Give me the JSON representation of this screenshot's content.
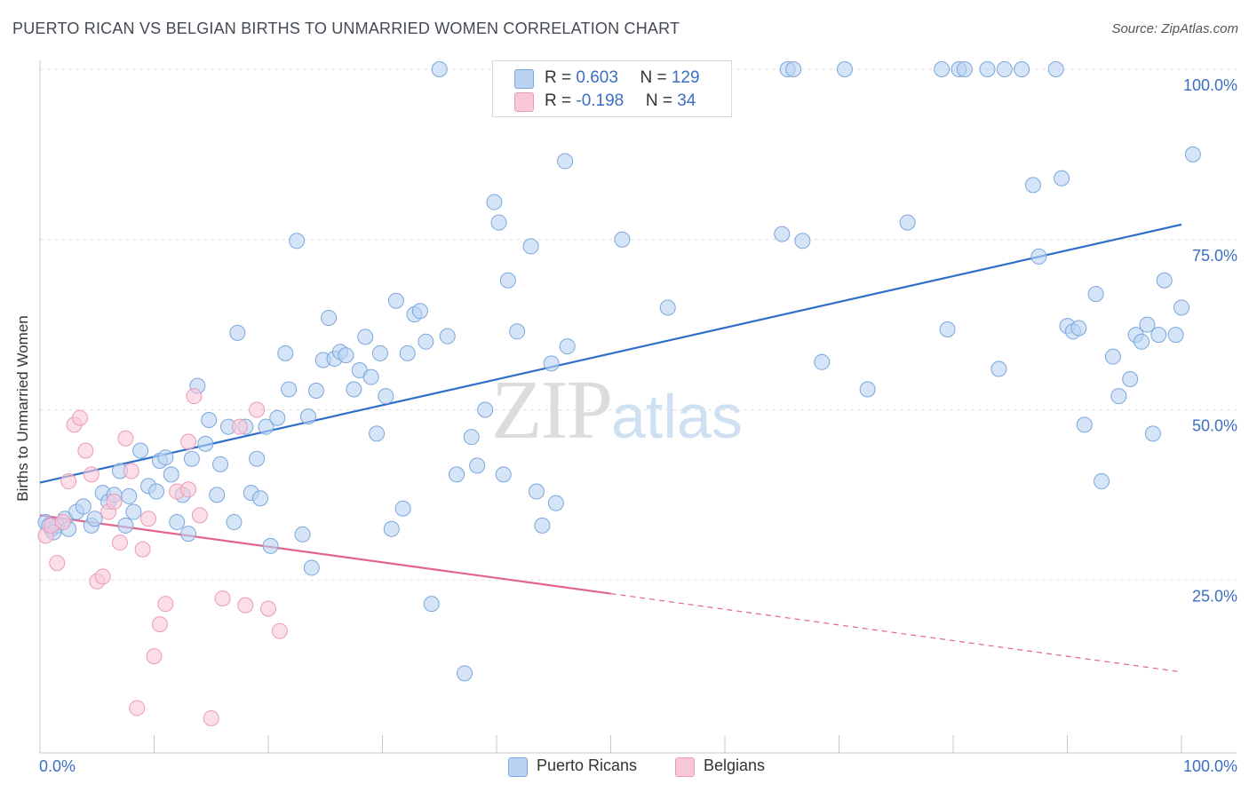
{
  "title": "PUERTO RICAN VS BELGIAN BIRTHS TO UNMARRIED WOMEN CORRELATION CHART",
  "source": "Source: ZipAtlas.com",
  "watermark": {
    "zip": "ZIP",
    "atlas": "atlas"
  },
  "legend": {
    "rows": [
      {
        "r_label": "R = ",
        "r_value": "0.603",
        "n_label": "N = ",
        "n_value": "129",
        "color": "#b9d3f1"
      },
      {
        "r_label": "R = ",
        "r_value": "-0.198",
        "n_label": "N = ",
        "n_value": "34",
        "color": "#f9c8d8"
      }
    ]
  },
  "bottom_legend": [
    {
      "label": "Puerto Ricans",
      "color": "#b9d3f1"
    },
    {
      "label": "Belgians",
      "color": "#f9c8d8"
    }
  ],
  "chart_data": {
    "type": "scatter",
    "title": "PUERTO RICAN VS BELGIAN BIRTHS TO UNMARRIED WOMEN CORRELATION CHART",
    "xlabel": "",
    "ylabel": "Births to Unmarried Women",
    "xlim": [
      0,
      100
    ],
    "ylim": [
      0,
      105
    ],
    "x_tick_labels": [
      "0.0%",
      "100.0%"
    ],
    "y_ticks": [
      25,
      50,
      75,
      100
    ],
    "y_tick_labels": [
      "25.0%",
      "50.0%",
      "75.0%",
      "100.0%"
    ],
    "grid": true,
    "grid_style": "dashed horizontal",
    "accent_blue": "#3a6fc2",
    "series": [
      {
        "name": "Puerto Ricans",
        "color": "#b9d3f1",
        "stroke": "#7ba6dc",
        "trend_color": "#2f6fcc",
        "trend": {
          "x0": 0,
          "y0": 39.3,
          "x1": 100,
          "y1": 77.2
        },
        "points": [
          [
            0.5,
            33.5
          ],
          [
            1.0,
            32.5
          ],
          [
            1.5,
            33.0
          ],
          [
            2.2,
            34.0
          ],
          [
            0.8,
            33.0
          ],
          [
            1.2,
            32.0
          ],
          [
            2.5,
            32.5
          ],
          [
            3.2,
            35.0
          ],
          [
            3.8,
            35.8
          ],
          [
            4.5,
            33.0
          ],
          [
            4.8,
            34.0
          ],
          [
            5.5,
            37.8
          ],
          [
            6.0,
            36.5
          ],
          [
            6.5,
            37.5
          ],
          [
            7.0,
            41.0
          ],
          [
            7.5,
            33.0
          ],
          [
            7.8,
            37.3
          ],
          [
            8.2,
            35.0
          ],
          [
            8.8,
            44.0
          ],
          [
            9.5,
            38.8
          ],
          [
            10.2,
            38.0
          ],
          [
            10.5,
            42.5
          ],
          [
            11.0,
            43.0
          ],
          [
            11.5,
            40.5
          ],
          [
            12.0,
            33.5
          ],
          [
            12.5,
            37.5
          ],
          [
            13.0,
            31.8
          ],
          [
            13.3,
            42.8
          ],
          [
            13.8,
            53.5
          ],
          [
            14.5,
            45.0
          ],
          [
            14.8,
            48.5
          ],
          [
            15.5,
            37.5
          ],
          [
            15.8,
            42.0
          ],
          [
            16.5,
            47.5
          ],
          [
            17.0,
            33.5
          ],
          [
            17.3,
            61.3
          ],
          [
            18.0,
            47.5
          ],
          [
            18.5,
            37.8
          ],
          [
            19.0,
            42.8
          ],
          [
            19.3,
            37.0
          ],
          [
            19.8,
            47.5
          ],
          [
            20.2,
            30.0
          ],
          [
            20.8,
            48.8
          ],
          [
            21.5,
            58.3
          ],
          [
            21.8,
            53.0
          ],
          [
            22.5,
            74.8
          ],
          [
            23.0,
            31.7
          ],
          [
            23.5,
            49.0
          ],
          [
            23.8,
            26.8
          ],
          [
            24.2,
            52.8
          ],
          [
            24.8,
            57.3
          ],
          [
            25.3,
            63.5
          ],
          [
            25.8,
            57.5
          ],
          [
            26.3,
            58.5
          ],
          [
            26.8,
            58.0
          ],
          [
            27.5,
            53.0
          ],
          [
            28.0,
            55.8
          ],
          [
            28.5,
            60.7
          ],
          [
            29.0,
            54.8
          ],
          [
            29.5,
            46.5
          ],
          [
            29.8,
            58.3
          ],
          [
            30.3,
            52.0
          ],
          [
            30.8,
            32.5
          ],
          [
            31.2,
            66.0
          ],
          [
            31.8,
            35.5
          ],
          [
            32.2,
            58.3
          ],
          [
            32.8,
            64.0
          ],
          [
            33.3,
            64.5
          ],
          [
            33.8,
            60.0
          ],
          [
            34.3,
            21.5
          ],
          [
            35.0,
            100
          ],
          [
            35.7,
            60.8
          ],
          [
            36.5,
            40.5
          ],
          [
            37.2,
            11.3
          ],
          [
            37.8,
            46.0
          ],
          [
            38.3,
            41.8
          ],
          [
            39.0,
            50.0
          ],
          [
            39.8,
            80.5
          ],
          [
            40.2,
            77.5
          ],
          [
            40.6,
            40.5
          ],
          [
            41.0,
            69.0
          ],
          [
            41.8,
            61.5
          ],
          [
            43.0,
            74.0
          ],
          [
            43.5,
            38.0
          ],
          [
            44.0,
            33.0
          ],
          [
            44.8,
            56.8
          ],
          [
            45.2,
            36.3
          ],
          [
            46.0,
            86.5
          ],
          [
            46.2,
            59.3
          ],
          [
            51.0,
            75.0
          ],
          [
            54.5,
            100
          ],
          [
            55.0,
            65.0
          ],
          [
            65.0,
            75.8
          ],
          [
            65.5,
            100
          ],
          [
            66.0,
            100
          ],
          [
            66.8,
            74.8
          ],
          [
            68.5,
            57.0
          ],
          [
            70.5,
            100
          ],
          [
            72.5,
            53.0
          ],
          [
            76.0,
            77.5
          ],
          [
            79.0,
            100
          ],
          [
            79.5,
            61.8
          ],
          [
            80.5,
            100
          ],
          [
            81.0,
            100
          ],
          [
            83.0,
            100
          ],
          [
            84.0,
            56.0
          ],
          [
            84.5,
            100
          ],
          [
            86.0,
            100
          ],
          [
            87.0,
            83.0
          ],
          [
            87.5,
            72.5
          ],
          [
            89.0,
            100
          ],
          [
            89.5,
            84.0
          ],
          [
            90.0,
            62.3
          ],
          [
            90.5,
            61.5
          ],
          [
            91.0,
            62.0
          ],
          [
            91.5,
            47.8
          ],
          [
            92.5,
            67.0
          ],
          [
            93.0,
            39.5
          ],
          [
            94.0,
            57.8
          ],
          [
            94.5,
            52.0
          ],
          [
            95.5,
            54.5
          ],
          [
            96.0,
            61.0
          ],
          [
            96.5,
            60.0
          ],
          [
            97.0,
            62.5
          ],
          [
            97.5,
            46.5
          ],
          [
            98.0,
            61.0
          ],
          [
            98.5,
            69.0
          ],
          [
            99.5,
            61.0
          ],
          [
            100.0,
            65.0
          ],
          [
            101.0,
            87.5
          ]
        ]
      },
      {
        "name": "Belgians",
        "color": "#f9c8d8",
        "stroke": "#eb9bb7",
        "trend_color": "#e2658f",
        "trend": {
          "x0": 0,
          "y0": 34.5,
          "x1": 50,
          "y1": 23.0,
          "dashed_to": {
            "x": 100,
            "y": 11.5
          }
        },
        "points": [
          [
            0.5,
            31.5
          ],
          [
            1.0,
            33.0
          ],
          [
            1.5,
            27.5
          ],
          [
            2.0,
            33.5
          ],
          [
            2.5,
            39.5
          ],
          [
            3.0,
            47.8
          ],
          [
            3.5,
            48.8
          ],
          [
            4.0,
            44.0
          ],
          [
            4.5,
            40.5
          ],
          [
            5.0,
            24.8
          ],
          [
            5.5,
            25.5
          ],
          [
            6.0,
            35.0
          ],
          [
            6.5,
            36.5
          ],
          [
            7.0,
            30.5
          ],
          [
            7.5,
            45.8
          ],
          [
            8.0,
            41.0
          ],
          [
            8.5,
            6.2
          ],
          [
            9.0,
            29.5
          ],
          [
            9.5,
            34.0
          ],
          [
            10.0,
            13.8
          ],
          [
            10.5,
            18.5
          ],
          [
            11.0,
            21.5
          ],
          [
            12.0,
            38.0
          ],
          [
            13.0,
            45.3
          ],
          [
            13.5,
            52.0
          ],
          [
            14.0,
            34.5
          ],
          [
            15.0,
            4.7
          ],
          [
            16.0,
            22.3
          ],
          [
            17.5,
            47.5
          ],
          [
            18.0,
            21.3
          ],
          [
            19.0,
            50.0
          ],
          [
            20.0,
            20.8
          ],
          [
            21.0,
            17.5
          ],
          [
            13.0,
            38.3
          ]
        ]
      }
    ]
  }
}
